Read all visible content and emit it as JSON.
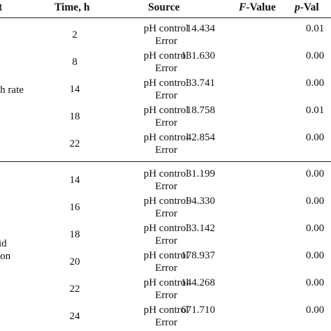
{
  "header": {
    "factor_fragment": "t",
    "time": "Time, h",
    "source": "Source",
    "f_value_italic": "F",
    "f_value_rest": "-Value",
    "p_value_italic": "p",
    "p_value_rest": "-Val"
  },
  "groups": [
    {
      "label_fragment": "th rate",
      "rows": [
        {
          "time": "2",
          "source": "pH control",
          "error": "Error",
          "f": "14.434",
          "p": "0.01"
        },
        {
          "time": "8",
          "source": "pH control",
          "error": "Error",
          "f": "131.630",
          "p": "0.00"
        },
        {
          "time": "14",
          "source": "pH control",
          "error": "Error",
          "f": "33.741",
          "p": "0.00"
        },
        {
          "time": "18",
          "source": "pH control",
          "error": "Error",
          "f": "18.758",
          "p": "0.01"
        },
        {
          "time": "22",
          "source": "pH control",
          "error": "Error",
          "f": "42.854",
          "p": "0.00"
        }
      ]
    },
    {
      "label_fragment_1": "id",
      "label_fragment_2": "ion",
      "rows": [
        {
          "time": "14",
          "source": "pH control",
          "error": "Error",
          "f": "31.199",
          "p": "0.00"
        },
        {
          "time": "16",
          "source": "pH control",
          "error": "Error",
          "f": "94.330",
          "p": "0.00"
        },
        {
          "time": "18",
          "source": "pH control",
          "error": "Error",
          "f": "33.142",
          "p": "0.00"
        },
        {
          "time": "20",
          "source": "pH control",
          "error": "Error",
          "f": "178.937",
          "p": "0.00"
        },
        {
          "time": "22",
          "source": "pH control",
          "error": "Error",
          "f": "144.268",
          "p": "0.00"
        },
        {
          "time": "24",
          "source": "pH control",
          "error": "Error",
          "f": "671.710",
          "p": "0.00"
        }
      ]
    }
  ]
}
